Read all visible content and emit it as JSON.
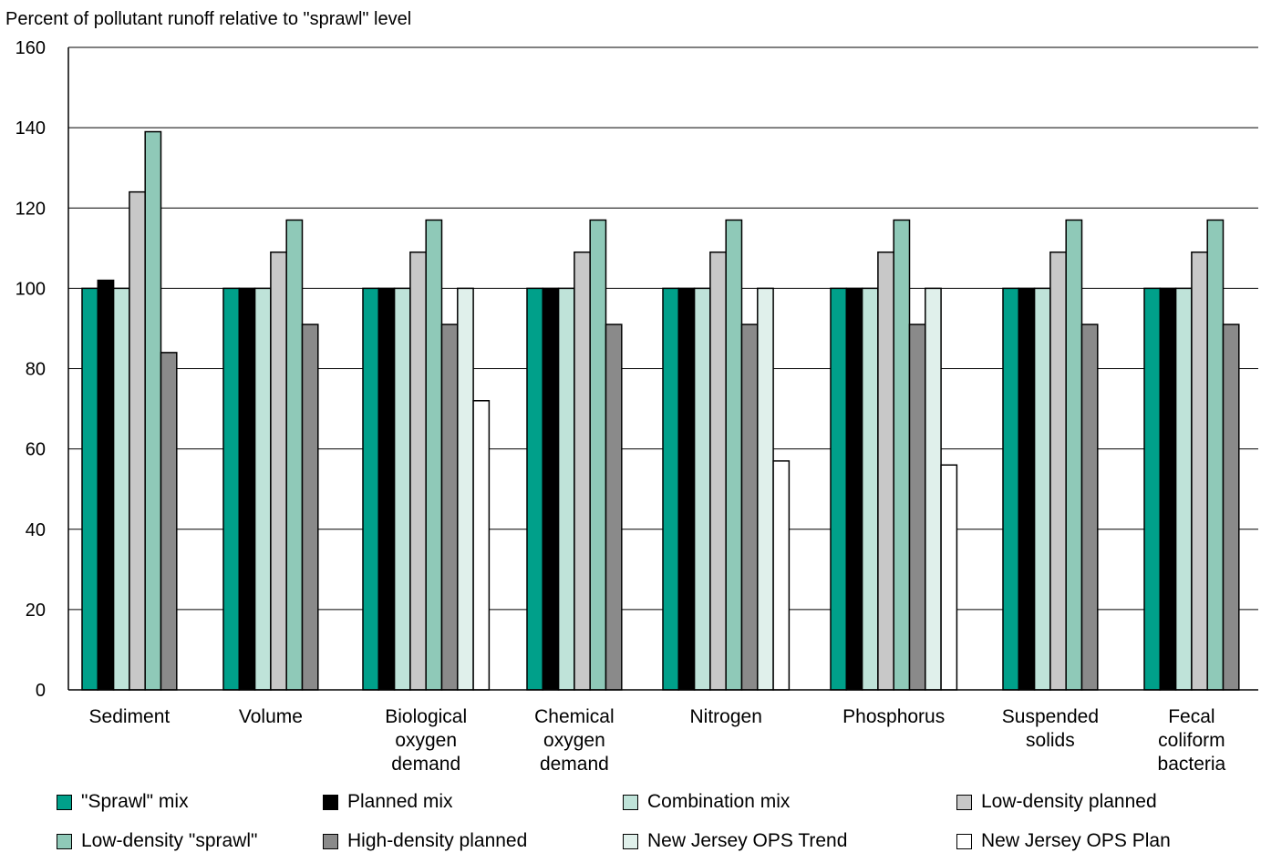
{
  "chart_data": {
    "type": "bar",
    "ylabel": "Percent of pollutant runoff relative to \"sprawl\" level",
    "ylim": [
      0,
      160
    ],
    "yticks": [
      0,
      20,
      40,
      60,
      80,
      100,
      120,
      140,
      160
    ],
    "grid": true,
    "legend_position": "bottom",
    "categories": [
      [
        "Sediment"
      ],
      [
        "Volume"
      ],
      [
        "Biological",
        "oxygen",
        "demand"
      ],
      [
        "Chemical",
        "oxygen",
        "demand"
      ],
      [
        "Nitrogen"
      ],
      [
        "Phosphorus"
      ],
      [
        "Suspended",
        "solids"
      ],
      [
        "Fecal",
        "coliform",
        "bacteria"
      ]
    ],
    "series": [
      {
        "name": "\"Sprawl\" mix",
        "color": "#00a08a",
        "values": [
          100,
          100,
          100,
          100,
          100,
          100,
          100,
          100
        ]
      },
      {
        "name": "Planned mix",
        "color": "#000000",
        "values": [
          102,
          100,
          100,
          100,
          100,
          100,
          100,
          100
        ]
      },
      {
        "name": "Combination mix",
        "color": "#bfe3d9",
        "values": [
          100,
          100,
          100,
          100,
          100,
          100,
          100,
          100
        ]
      },
      {
        "name": "Low-density planned",
        "color": "#c8c8c8",
        "values": [
          124,
          109,
          109,
          109,
          109,
          109,
          109,
          109
        ]
      },
      {
        "name": "Low-density \"sprawl\"",
        "color": "#8fc9b8",
        "values": [
          139,
          117,
          117,
          117,
          117,
          117,
          117,
          117
        ]
      },
      {
        "name": "High-density planned",
        "color": "#8a8a8a",
        "values": [
          84,
          91,
          91,
          91,
          91,
          91,
          91,
          91
        ]
      },
      {
        "name": "New Jersey OPS Trend",
        "color": "#e0f0eb",
        "values": [
          null,
          null,
          100,
          null,
          100,
          100,
          null,
          null
        ]
      },
      {
        "name": "New Jersey OPS Plan",
        "color": "#ffffff",
        "values": [
          null,
          null,
          72,
          null,
          57,
          56,
          null,
          null
        ]
      }
    ]
  }
}
